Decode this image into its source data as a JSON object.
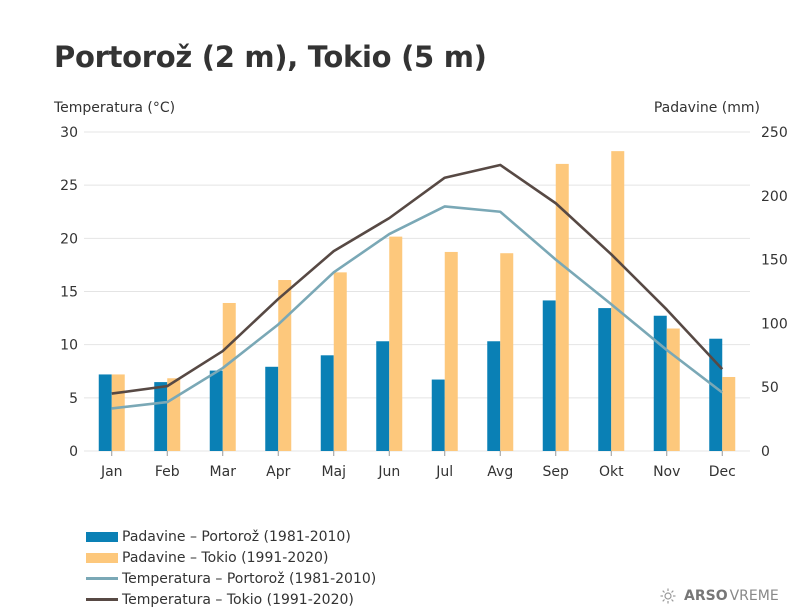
{
  "chart_data": {
    "type": "bar",
    "title": "Portorož (2 m), Tokio (5 m)",
    "ylabel_left": "Temperatura (°C)",
    "ylabel_right": "Padavine (mm)",
    "ylim_left": [
      0,
      30
    ],
    "ylim_right": [
      0,
      250
    ],
    "yticks_left": [
      0,
      5,
      10,
      15,
      20,
      25,
      30
    ],
    "yticks_right": [
      0,
      50,
      100,
      150,
      200,
      250
    ],
    "grid": true,
    "legend_position": "bottom-left",
    "categories": [
      "Jan",
      "Feb",
      "Mar",
      "Apr",
      "Maj",
      "Jun",
      "Jul",
      "Avg",
      "Sep",
      "Okt",
      "Nov",
      "Dec"
    ],
    "series": [
      {
        "name": "Padavine – Portorož (1981-2010)",
        "type": "bar",
        "axis": "right",
        "color": "#0a80b5",
        "values": [
          60,
          54,
          63,
          66,
          75,
          86,
          56,
          86,
          118,
          112,
          106,
          88
        ]
      },
      {
        "name": "Padavine – Tokio (1991-2020)",
        "type": "bar",
        "axis": "right",
        "color": "#fdc87c",
        "values": [
          60,
          57,
          116,
          134,
          140,
          168,
          156,
          155,
          225,
          235,
          96,
          58
        ]
      },
      {
        "name": "Temperatura – Portorož (1981-2010)",
        "type": "line",
        "axis": "left",
        "color": "#7aa8b6",
        "values": [
          4.0,
          4.6,
          7.8,
          11.9,
          16.8,
          20.4,
          23.0,
          22.5,
          18.0,
          13.8,
          9.5,
          5.5
        ]
      },
      {
        "name": "Temperatura – Tokio (1991-2020)",
        "type": "line",
        "axis": "left",
        "color": "#574944",
        "values": [
          5.4,
          6.1,
          9.4,
          14.3,
          18.8,
          21.9,
          25.7,
          26.9,
          23.3,
          18.5,
          13.3,
          7.7
        ]
      }
    ]
  },
  "brand": {
    "name_bold": "ARSO",
    "name_light": "VREME",
    "icon": "sun-icon"
  }
}
